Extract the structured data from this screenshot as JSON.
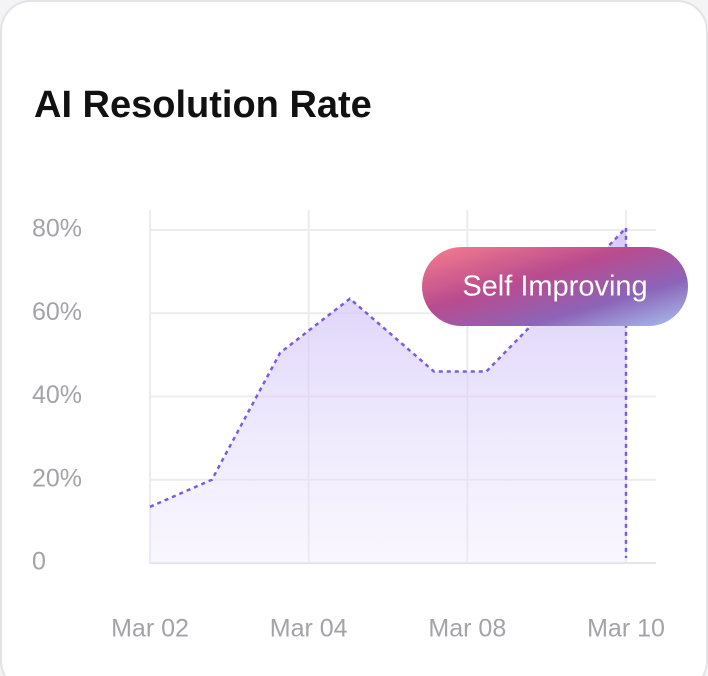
{
  "chart_data": {
    "type": "line",
    "title": "AI Resolution Rate",
    "annotation": "Self Improving",
    "x": [
      0,
      0.39,
      0.82,
      1.26,
      1.79,
      2.12,
      3.0
    ],
    "series": [
      {
        "name": "AI Resolution Rate",
        "color": "#7b5ce0",
        "values": [
          13.5,
          20,
          50.5,
          63.5,
          46,
          46,
          80.5
        ]
      }
    ],
    "xlim": [
      0,
      3
    ],
    "xticks": [
      {
        "value": 0,
        "label": "Mar 02"
      },
      {
        "value": 1,
        "label": "Mar 04"
      },
      {
        "value": 2,
        "label": "Mar 08"
      },
      {
        "value": 3,
        "label": "Mar 10"
      }
    ],
    "ylim": [
      0,
      80
    ],
    "yticks": [
      0,
      {
        "value": 20,
        "label": "20%"
      },
      {
        "value": 40,
        "label": "40%"
      },
      {
        "value": 60,
        "label": "60%"
      },
      {
        "value": 80,
        "label": "80%"
      }
    ],
    "grid": true
  }
}
